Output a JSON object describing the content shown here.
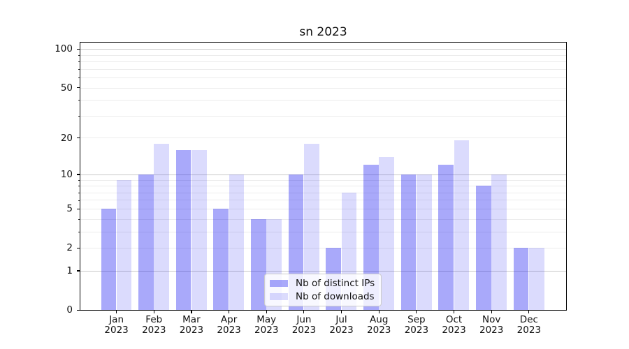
{
  "title": "sn 2023",
  "legend": {
    "items": [
      {
        "key": "distinct-ips",
        "label": "Nb of distinct IPs",
        "color": "rgba(10,10,240,0.35)"
      },
      {
        "key": "downloads",
        "label": "Nb of downloads",
        "color": "rgba(10,10,240,0.145)"
      }
    ]
  },
  "y_axis": {
    "ticks": [
      {
        "value": 100,
        "label": "100"
      },
      {
        "value": 50,
        "label": "50"
      },
      {
        "value": 20,
        "label": "20"
      },
      {
        "value": 10,
        "label": "10"
      },
      {
        "value": 5,
        "label": "5"
      },
      {
        "value": 2,
        "label": "2"
      },
      {
        "value": 1,
        "label": "1"
      },
      {
        "value": 0,
        "label": "0"
      }
    ],
    "major_grid": [
      1,
      10,
      100
    ],
    "minor_grid": [
      2,
      3,
      4,
      5,
      6,
      7,
      8,
      9,
      20,
      30,
      40,
      50,
      60,
      70,
      80,
      90
    ],
    "minor_tick_marks": [
      3,
      4,
      6,
      7,
      8,
      9,
      30,
      40,
      60,
      70,
      80,
      90
    ]
  },
  "x_axis": {
    "year": "2023",
    "months": [
      "Jan",
      "Feb",
      "Mar",
      "Apr",
      "May",
      "Jun",
      "Jul",
      "Aug",
      "Sep",
      "Oct",
      "Nov",
      "Dec"
    ]
  },
  "chart_data": {
    "type": "bar",
    "title": "sn 2023",
    "categories": [
      "Jan 2023",
      "Feb 2023",
      "Mar 2023",
      "Apr 2023",
      "May 2023",
      "Jun 2023",
      "Jul 2023",
      "Aug 2023",
      "Sep 2023",
      "Oct 2023",
      "Nov 2023",
      "Dec 2023"
    ],
    "series": [
      {
        "name": "Nb of distinct IPs",
        "key": "distinct-ips",
        "values": [
          5,
          10,
          16,
          5,
          4,
          10,
          2,
          12,
          10,
          12,
          8,
          2
        ]
      },
      {
        "name": "Nb of downloads",
        "key": "downloads",
        "values": [
          9,
          18,
          16,
          10,
          4,
          18,
          7,
          14,
          10,
          19,
          10,
          2
        ]
      }
    ],
    "xlabel": "",
    "ylabel": "",
    "yscale": "log1p",
    "y_tick_values": [
      0,
      1,
      2,
      5,
      10,
      20,
      50,
      100
    ],
    "ylim": [
      0,
      115
    ],
    "grid": true,
    "legend_position": "lower center"
  }
}
